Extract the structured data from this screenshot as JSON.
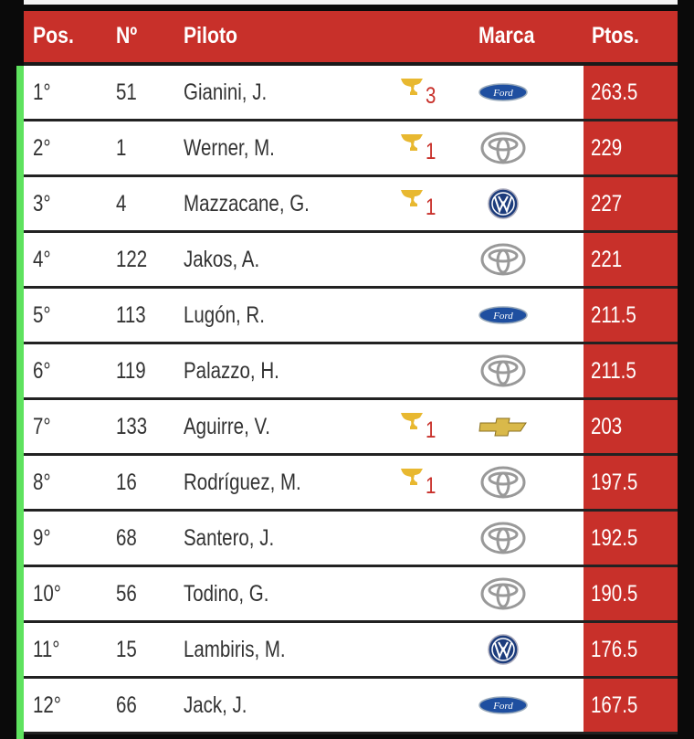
{
  "header": {
    "pos": "Pos.",
    "num": "Nº",
    "pilot": "Piloto",
    "brand": "Marca",
    "points": "Ptos."
  },
  "colors": {
    "accent": "#c8302a",
    "highlight": "#5fe35f",
    "trophy": "#e8b830"
  },
  "rows": [
    {
      "pos": "1°",
      "num": "51",
      "pilot": "Gianini, J.",
      "wins": "3",
      "brand": "ford",
      "points": "263.5"
    },
    {
      "pos": "2°",
      "num": "1",
      "pilot": "Werner, M.",
      "wins": "1",
      "brand": "toyota",
      "points": "229"
    },
    {
      "pos": "3°",
      "num": "4",
      "pilot": "Mazzacane, G.",
      "wins": "1",
      "brand": "volkswagen",
      "points": "227"
    },
    {
      "pos": "4°",
      "num": "122",
      "pilot": "Jakos, A.",
      "wins": "",
      "brand": "toyota",
      "points": "221"
    },
    {
      "pos": "5°",
      "num": "113",
      "pilot": "Lugón, R.",
      "wins": "",
      "brand": "ford",
      "points": "211.5"
    },
    {
      "pos": "6°",
      "num": "119",
      "pilot": "Palazzo, H.",
      "wins": "",
      "brand": "toyota",
      "points": "211.5"
    },
    {
      "pos": "7°",
      "num": "133",
      "pilot": "Aguirre, V.",
      "wins": "1",
      "brand": "chevrolet",
      "points": "203"
    },
    {
      "pos": "8°",
      "num": "16",
      "pilot": "Rodríguez, M.",
      "wins": "1",
      "brand": "toyota",
      "points": "197.5"
    },
    {
      "pos": "9°",
      "num": "68",
      "pilot": "Santero, J.",
      "wins": "",
      "brand": "toyota",
      "points": "192.5"
    },
    {
      "pos": "10°",
      "num": "56",
      "pilot": "Todino, G.",
      "wins": "",
      "brand": "toyota",
      "points": "190.5"
    },
    {
      "pos": "11°",
      "num": "15",
      "pilot": "Lambiris, M.",
      "wins": "",
      "brand": "volkswagen",
      "points": "176.5"
    },
    {
      "pos": "12°",
      "num": "66",
      "pilot": "Jack, J.",
      "wins": "",
      "brand": "ford",
      "points": "167.5"
    }
  ]
}
